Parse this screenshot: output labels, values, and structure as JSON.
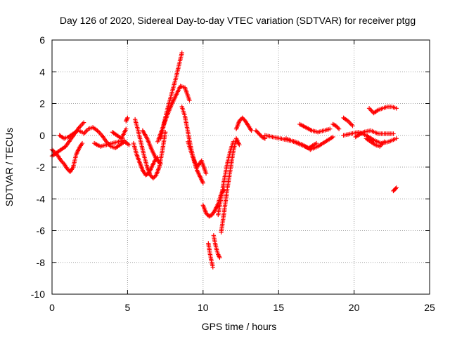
{
  "chart_data": {
    "type": "scatter",
    "title": "Day 126 of 2020, Sidereal Day-to-day VTEC variation (SDTVAR) for receiver ptgg",
    "xlabel": "GPS time / hours",
    "ylabel": "SDTVAR / TECUs",
    "xlim": [
      0,
      25
    ],
    "ylim": [
      -10,
      6
    ],
    "xticks": [
      "0",
      "5",
      "10",
      "15",
      "20",
      "25"
    ],
    "yticks": [
      "-10",
      "-8",
      "-6",
      "-4",
      "-2",
      "0",
      "2",
      "4",
      "6"
    ],
    "grid": true,
    "marker": "plus",
    "series_color": "#ff0000",
    "series": [
      {
        "name": "arc-1",
        "x": [
          0.0,
          0.2,
          0.4,
          0.6,
          0.8,
          1.0,
          1.2,
          1.4,
          1.6,
          1.8,
          2.0
        ],
        "y": [
          -0.9,
          -1.1,
          -1.3,
          -1.6,
          -1.8,
          -2.1,
          -2.3,
          -2.0,
          -1.2,
          -0.8,
          -0.5
        ]
      },
      {
        "name": "arc-2",
        "x": [
          0.0,
          0.3,
          0.6,
          0.9,
          1.2,
          1.5,
          1.8,
          2.1
        ],
        "y": [
          -1.3,
          -1.1,
          -0.9,
          -0.7,
          -0.3,
          0.1,
          0.5,
          0.8
        ]
      },
      {
        "name": "arc-3",
        "x": [
          0.5,
          0.8,
          1.1,
          1.4,
          1.7,
          2.0
        ],
        "y": [
          0.0,
          -0.2,
          -0.1,
          0.1,
          0.3,
          0.2
        ]
      },
      {
        "name": "arc-4",
        "x": [
          2.1,
          2.4,
          2.7,
          3.0,
          3.3,
          3.6,
          3.9,
          4.2,
          4.5,
          4.8,
          5.1
        ],
        "y": [
          0.1,
          0.4,
          0.5,
          0.3,
          0.0,
          -0.4,
          -0.7,
          -0.8,
          -0.6,
          -0.4,
          -0.6
        ]
      },
      {
        "name": "arc-5",
        "x": [
          2.8,
          3.2,
          3.6,
          4.0,
          4.4,
          4.8
        ],
        "y": [
          -0.5,
          -0.7,
          -0.6,
          -0.5,
          -0.4,
          -0.3
        ]
      },
      {
        "name": "arc-6",
        "x": [
          4.0,
          4.3,
          4.6,
          4.9
        ],
        "y": [
          0.2,
          0.0,
          -0.2,
          0.4
        ]
      },
      {
        "name": "arc-7",
        "x": [
          4.9,
          5.0
        ],
        "y": [
          0.9,
          1.1
        ]
      },
      {
        "name": "arc-8",
        "x": [
          5.5,
          5.7,
          5.9,
          6.1,
          6.3,
          6.5,
          6.7,
          6.9,
          7.1,
          7.3,
          7.5
        ],
        "y": [
          1.0,
          0.3,
          -0.5,
          -1.3,
          -2.0,
          -2.5,
          -2.7,
          -2.5,
          -2.0,
          -1.0,
          0.2
        ]
      },
      {
        "name": "arc-9",
        "x": [
          5.4,
          5.6,
          5.8,
          6.0,
          6.2,
          6.4,
          6.6,
          6.8,
          7.0
        ],
        "y": [
          -0.5,
          -1.2,
          -1.7,
          -2.2,
          -2.5,
          -2.4,
          -2.0,
          -1.6,
          -1.4
        ]
      },
      {
        "name": "arc-10",
        "x": [
          6.0,
          6.3,
          6.6,
          6.9,
          7.2
        ],
        "y": [
          0.3,
          -0.2,
          -0.9,
          -1.5,
          -1.8
        ]
      },
      {
        "name": "arc-11",
        "x": [
          7.2,
          7.4,
          7.6,
          7.8,
          8.0,
          8.2,
          8.4,
          8.6
        ],
        "y": [
          -0.2,
          0.7,
          1.5,
          2.2,
          2.9,
          3.6,
          4.4,
          5.2
        ]
      },
      {
        "name": "arc-12",
        "x": [
          7.0,
          7.3,
          7.6,
          7.9,
          8.2,
          8.5,
          8.8,
          9.1
        ],
        "y": [
          -0.4,
          0.4,
          1.2,
          1.9,
          2.5,
          3.1,
          3.0,
          2.2
        ]
      },
      {
        "name": "arc-13",
        "x": [
          8.6,
          8.8,
          9.0,
          9.2,
          9.4,
          9.6,
          9.8,
          10.0
        ],
        "y": [
          1.8,
          1.2,
          0.2,
          -0.8,
          -1.6,
          -2.2,
          -2.6,
          -3.0
        ]
      },
      {
        "name": "arc-14",
        "x": [
          9.0,
          9.3,
          9.6,
          9.9,
          10.2
        ],
        "y": [
          -0.4,
          -1.3,
          -2.0,
          -1.6,
          -2.4
        ]
      },
      {
        "name": "arc-15",
        "x": [
          10.0,
          10.2,
          10.4,
          10.6,
          10.8,
          11.0,
          11.2,
          11.4
        ],
        "y": [
          -4.4,
          -4.9,
          -5.1,
          -5.0,
          -4.7,
          -4.3,
          -3.7,
          -3.4
        ]
      },
      {
        "name": "arc-16",
        "x": [
          10.35,
          10.45,
          10.55,
          10.65
        ],
        "y": [
          -6.8,
          -7.4,
          -7.9,
          -8.3
        ]
      },
      {
        "name": "arc-17",
        "x": [
          10.7,
          10.8,
          10.9,
          11.0,
          11.1
        ],
        "y": [
          -6.3,
          -6.8,
          -7.2,
          -7.5,
          -7.7
        ]
      },
      {
        "name": "arc-18",
        "x": [
          11.2,
          11.4,
          11.6,
          11.8,
          12.0,
          12.2,
          12.4
        ],
        "y": [
          -6.1,
          -4.8,
          -3.4,
          -2.2,
          -1.0,
          -0.2,
          -0.6
        ]
      },
      {
        "name": "arc-19",
        "x": [
          11.0,
          11.2,
          11.4,
          11.6,
          11.8,
          12.0
        ],
        "y": [
          -5.0,
          -3.9,
          -2.8,
          -1.8,
          -1.0,
          -0.4
        ]
      },
      {
        "name": "arc-20",
        "x": [
          12.2,
          12.4,
          12.6,
          12.8,
          13.0,
          13.2
        ],
        "y": [
          0.4,
          0.9,
          1.1,
          0.9,
          0.6,
          0.3
        ]
      },
      {
        "name": "arc-21",
        "x": [
          13.5,
          13.7,
          13.9,
          14.1
        ],
        "y": [
          0.3,
          0.1,
          -0.1,
          -0.2
        ]
      },
      {
        "name": "arc-22",
        "x": [
          14.1,
          14.6,
          15.1,
          15.6,
          16.1,
          16.6,
          17.1,
          17.6,
          18.1,
          18.6
        ],
        "y": [
          0.0,
          -0.1,
          -0.2,
          -0.3,
          -0.4,
          -0.6,
          -0.9,
          -0.7,
          -0.4,
          -0.1
        ]
      },
      {
        "name": "arc-23",
        "x": [
          15.5,
          16.0,
          16.5,
          17.0,
          17.5
        ],
        "y": [
          -0.2,
          -0.4,
          -0.6,
          -0.8,
          -0.5
        ]
      },
      {
        "name": "arc-24",
        "x": [
          16.4,
          16.8,
          17.2,
          17.6,
          18.0,
          18.4
        ],
        "y": [
          0.7,
          0.5,
          0.3,
          0.2,
          0.3,
          0.4
        ]
      },
      {
        "name": "arc-25",
        "x": [
          18.6,
          18.8,
          19.0
        ],
        "y": [
          0.7,
          0.6,
          0.4
        ]
      },
      {
        "name": "arc-26",
        "x": [
          19.3,
          19.6,
          19.9
        ],
        "y": [
          1.1,
          0.9,
          0.6
        ]
      },
      {
        "name": "arc-27",
        "x": [
          19.3,
          19.8,
          20.3,
          20.8,
          21.3,
          21.8,
          22.3,
          22.8
        ],
        "y": [
          0.0,
          0.1,
          0.2,
          0.0,
          -0.3,
          -0.5,
          -0.4,
          -0.2
        ]
      },
      {
        "name": "arc-28",
        "x": [
          20.1,
          20.6,
          21.1,
          21.6,
          22.1,
          22.6
        ],
        "y": [
          -0.1,
          0.2,
          0.3,
          0.1,
          0.1,
          0.1
        ]
      },
      {
        "name": "arc-29",
        "x": [
          20.8,
          21.1,
          21.4,
          21.7,
          22.0
        ],
        "y": [
          -0.2,
          -0.4,
          -0.6,
          -0.7,
          -0.4
        ]
      },
      {
        "name": "arc-30",
        "x": [
          21.0,
          21.3,
          21.6,
          21.9,
          22.2,
          22.5,
          22.8
        ],
        "y": [
          1.7,
          1.4,
          1.6,
          1.7,
          1.8,
          1.8,
          1.7
        ]
      },
      {
        "name": "arc-31",
        "x": [
          22.6,
          22.7,
          22.8
        ],
        "y": [
          -3.5,
          -3.4,
          -3.3
        ]
      }
    ]
  }
}
